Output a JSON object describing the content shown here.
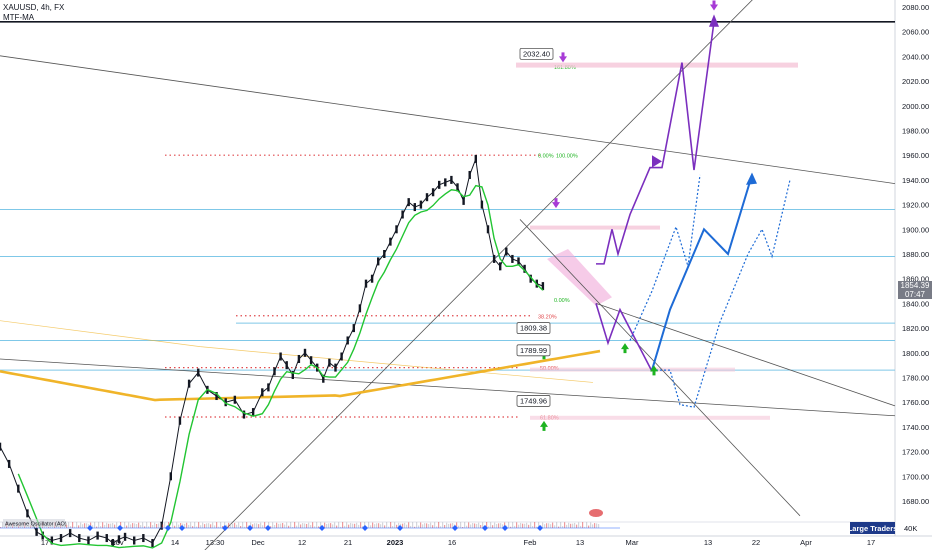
{
  "header": {
    "symbol_line": "XAUUSD, 4h, FX",
    "indicator_line": "MTF-MA"
  },
  "panel": {
    "oscillator_label": "Awesome Oscillator (AO)",
    "oscillator_value": "40K",
    "large_traders_label": "Large Traders"
  },
  "last_price": {
    "value": "1854.39",
    "countdown": "07:47",
    "color": "#787b86"
  },
  "colors": {
    "price_line": "#131722",
    "ma_fast": "#22c532",
    "ma_slow": "#f0b429",
    "hline": "#7fc8e8",
    "fib_dotted": "#e0484c",
    "projection_purple": "#7b2fbe",
    "projection_blue": "#1e6bd6",
    "arrow_green": "#1db320",
    "zone_pink": "#f5c6d8"
  },
  "chart_data": {
    "type": "line",
    "title": "",
    "ylim": [
      1660,
      2090
    ],
    "y_ticks": [
      "2080.00",
      "2060.00",
      "2040.00",
      "2020.00",
      "2000.00",
      "1980.00",
      "1960.00",
      "1940.00",
      "1920.00",
      "1900.00",
      "1880.00",
      "1860.00",
      "1840.00",
      "1820.00",
      "1800.00",
      "1780.00",
      "1760.00",
      "1740.00",
      "1720.00",
      "1700.00",
      "1680.00"
    ],
    "x_ticks": [
      "17",
      "Nov",
      "14",
      "13:30",
      "Dec",
      "12",
      "21",
      "2023",
      "16",
      "Feb",
      "13",
      "Mar",
      "13",
      "22",
      "Apr",
      "17"
    ],
    "annotations": [
      "2032.40",
      "1809.38",
      "1789.99",
      "1749.96"
    ],
    "fib_labels": [
      "0.00%",
      "100.00%",
      "161.80%",
      "38.20%",
      "50.00%",
      "61.80%"
    ],
    "horizontal_levels": [
      1916,
      1878,
      1824,
      1810,
      1786,
      2068
    ],
    "series": [
      {
        "values_x": [
          0,
          3,
          6,
          9,
          12,
          14,
          17,
          20,
          23,
          26,
          29,
          32,
          35,
          37,
          39,
          41,
          44,
          47,
          50,
          53,
          56,
          59,
          62,
          65,
          68,
          71,
          74,
          77,
          80,
          83,
          86,
          88,
          90,
          92,
          94,
          96,
          98,
          100,
          102,
          104,
          106,
          108,
          110,
          112,
          114,
          116,
          118,
          120,
          122,
          124,
          126,
          128,
          130,
          132,
          134,
          136,
          138,
          140,
          142,
          144,
          146,
          148,
          150,
          152,
          154,
          156,
          158,
          160,
          162,
          164,
          166,
          168,
          170,
          172,
          174,
          176,
          178
        ],
        "values": [
          1724,
          1710,
          1690,
          1670,
          1655,
          1652,
          1648,
          1650,
          1654,
          1650,
          1648,
          1652,
          1650,
          1646,
          1649,
          1651,
          1648,
          1650,
          1646,
          1660,
          1700,
          1745,
          1775,
          1784,
          1770,
          1765,
          1760,
          1762,
          1750,
          1752,
          1768,
          1772,
          1785,
          1797,
          1790,
          1782,
          1795,
          1800,
          1794,
          1788,
          1779,
          1792,
          1788,
          1797,
          1810,
          1820,
          1836,
          1856,
          1860,
          1874,
          1880,
          1890,
          1900,
          1912,
          1922,
          1918,
          1920,
          1926,
          1930,
          1936,
          1938,
          1940,
          1934,
          1923,
          1944,
          1957,
          1920,
          1900,
          1876,
          1870,
          1882,
          1876,
          1874,
          1868,
          1860,
          1856,
          1854
        ]
      }
    ]
  }
}
